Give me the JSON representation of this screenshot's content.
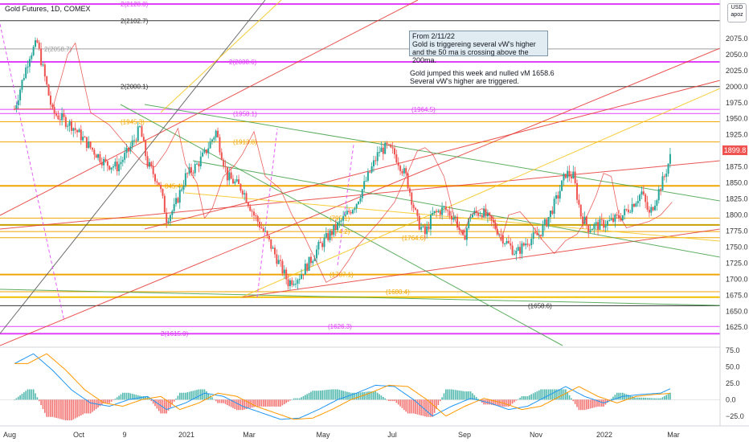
{
  "header": {
    "title": "Gold Futures, 1D, COMEX",
    "currency_label": "USD",
    "scale_label": "apoz",
    "last_price": "1899.8"
  },
  "annotations": {
    "box_lines": [
      "From 2/11/22",
      "Gold is triggereing several vW's higher",
      "and the 50 ma is crossing above the 200ma."
    ],
    "note_lines": [
      "Gold jumped this week and nulled vM 1658.6",
      "Several vW's higher are triggered."
    ]
  },
  "colors": {
    "background": "#ffffff",
    "candle_up": "#26a69a",
    "candle_down": "#ef5350",
    "level_magenta": "#e040fb",
    "level_orange": "#f0a500",
    "level_black": "#333333",
    "trend_red": "#e53935",
    "trend_green": "#43a047",
    "trend_yellow": "#f5c518",
    "macd_line": "#2196f3",
    "signal_line": "#ff9800"
  },
  "chart_data": [
    {
      "type": "candlestick",
      "title": "Gold Futures, 1D, COMEX",
      "xlabel": "",
      "ylabel": "",
      "ylim": [
        1594,
        2135
      ],
      "x_tick_labels": [
        "Aug",
        "Oct",
        "9",
        "2021",
        "Mar",
        "May",
        "Jul",
        "Sep",
        "Nov",
        "2022",
        "Mar"
      ],
      "y_tick_values": [
        1625,
        1650,
        1675,
        1700,
        1725,
        1750,
        1775,
        1800,
        1825,
        1850,
        1875,
        1900,
        1925,
        1950,
        1975,
        2000,
        2025,
        2050,
        2075
      ],
      "price_path": [
        {
          "month": 0.0,
          "price": 1965
        },
        {
          "month": 0.4,
          "price": 2050
        },
        {
          "month": 0.6,
          "price": 2068
        },
        {
          "month": 1.0,
          "price": 1960
        },
        {
          "month": 1.5,
          "price": 1940
        },
        {
          "month": 2.0,
          "price": 1905
        },
        {
          "month": 2.4,
          "price": 1880
        },
        {
          "month": 2.7,
          "price": 1875
        },
        {
          "month": 3.0,
          "price": 1900
        },
        {
          "month": 3.3,
          "price": 1935
        },
        {
          "month": 3.5,
          "price": 1880
        },
        {
          "month": 3.8,
          "price": 1850
        },
        {
          "month": 4.0,
          "price": 1795
        },
        {
          "month": 4.2,
          "price": 1810
        },
        {
          "month": 4.5,
          "price": 1860
        },
        {
          "month": 4.8,
          "price": 1878
        },
        {
          "month": 5.0,
          "price": 1895
        },
        {
          "month": 5.3,
          "price": 1930
        },
        {
          "month": 5.6,
          "price": 1860
        },
        {
          "month": 6.0,
          "price": 1840
        },
        {
          "month": 6.3,
          "price": 1800
        },
        {
          "month": 6.6,
          "price": 1770
        },
        {
          "month": 7.0,
          "price": 1720
        },
        {
          "month": 7.2,
          "price": 1695
        },
        {
          "month": 7.5,
          "price": 1705
        },
        {
          "month": 7.8,
          "price": 1730
        },
        {
          "month": 8.0,
          "price": 1750
        },
        {
          "month": 8.3,
          "price": 1770
        },
        {
          "month": 8.6,
          "price": 1790
        },
        {
          "month": 9.0,
          "price": 1820
        },
        {
          "month": 9.3,
          "price": 1860
        },
        {
          "month": 9.6,
          "price": 1900
        },
        {
          "month": 9.8,
          "price": 1905
        },
        {
          "month": 10.0,
          "price": 1895
        },
        {
          "month": 10.3,
          "price": 1860
        },
        {
          "month": 10.6,
          "price": 1790
        },
        {
          "month": 10.8,
          "price": 1770
        },
        {
          "month": 11.0,
          "price": 1800
        },
        {
          "month": 11.3,
          "price": 1810
        },
        {
          "month": 11.6,
          "price": 1795
        },
        {
          "month": 11.8,
          "price": 1760
        },
        {
          "month": 12.0,
          "price": 1800
        },
        {
          "month": 12.3,
          "price": 1805
        },
        {
          "month": 12.6,
          "price": 1785
        },
        {
          "month": 12.9,
          "price": 1760
        },
        {
          "month": 13.2,
          "price": 1740
        },
        {
          "month": 13.5,
          "price": 1760
        },
        {
          "month": 13.8,
          "price": 1770
        },
        {
          "month": 14.0,
          "price": 1790
        },
        {
          "month": 14.3,
          "price": 1830
        },
        {
          "month": 14.5,
          "price": 1865
        },
        {
          "month": 14.7,
          "price": 1860
        },
        {
          "month": 14.9,
          "price": 1800
        },
        {
          "month": 15.1,
          "price": 1780
        },
        {
          "month": 15.4,
          "price": 1785
        },
        {
          "month": 15.7,
          "price": 1790
        },
        {
          "month": 16.0,
          "price": 1800
        },
        {
          "month": 16.3,
          "price": 1820
        },
        {
          "month": 16.5,
          "price": 1835
        },
        {
          "month": 16.7,
          "price": 1800
        },
        {
          "month": 16.9,
          "price": 1830
        },
        {
          "month": 17.1,
          "price": 1860
        },
        {
          "month": 17.3,
          "price": 1900
        }
      ],
      "levels": [
        {
          "price": 2128.8,
          "label": "2(2128.8)",
          "color": "#e040fb",
          "width": 2
        },
        {
          "price": 2102.7,
          "label": "2(2102.7)",
          "color": "#333333",
          "width": 1
        },
        {
          "price": 2058.7,
          "label": "2(2058.7)",
          "color": "#9e9e9e",
          "width": 1
        },
        {
          "price": 2038.6,
          "label": "2(2038.6)",
          "color": "#e040fb",
          "width": 2
        },
        {
          "price": 2000.1,
          "label": "2(2000.1)",
          "color": "#333333",
          "width": 1
        },
        {
          "price": 1964.5,
          "label": "(1964.5)",
          "color": "#e040fb",
          "width": 1
        },
        {
          "price": 1958.1,
          "label": "(1958.1)",
          "color": "#e040fb",
          "width": 1
        },
        {
          "price": 1945.3,
          "label": "(1945.3)",
          "color": "#f0a500",
          "width": 1
        },
        {
          "price": 1913.8,
          "label": "(1913.8)",
          "color": "#f0a500",
          "width": 1
        },
        {
          "price": 1845.4,
          "label": "845.4)",
          "color": "#f0a500",
          "width": 2
        },
        {
          "price": 1795.1,
          "label": "(795.1)",
          "color": "#f0a500",
          "width": 1
        },
        {
          "price": 1784.5,
          "label": "",
          "color": "#c8a000",
          "width": 2
        },
        {
          "price": 1774.2,
          "label": "(774.2)",
          "color": "#f0a500",
          "width": 1
        },
        {
          "price": 1764.6,
          "label": "(1764.6)",
          "color": "#f0a500",
          "width": 1
        },
        {
          "price": 1707.1,
          "label": "(1707.1)",
          "color": "#f0a500",
          "width": 2
        },
        {
          "price": 1680.4,
          "label": "(1680.4)",
          "color": "#f0a500",
          "width": 1
        },
        {
          "price": 1672.0,
          "label": "",
          "color": "#f0c000",
          "width": 2
        },
        {
          "price": 1658.6,
          "label": "(1658.6)",
          "color": "#333333",
          "width": 1
        },
        {
          "price": 1626.3,
          "label": "(1626.3)",
          "color": "#e040fb",
          "width": 1
        },
        {
          "price": 1615.0,
          "label": "2(1615.0)",
          "color": "#e040fb",
          "width": 2
        }
      ]
    },
    {
      "type": "macd",
      "title": "",
      "ylim": [
        -40,
        80
      ],
      "y_tick_values": [
        75,
        50,
        25,
        0,
        -25
      ],
      "y_tick_labels": [
        "75.0",
        "50.0",
        "25.0",
        "0.0",
        "−25.0"
      ],
      "macd_path": [
        {
          "month": 0.0,
          "value": 55
        },
        {
          "month": 0.5,
          "value": 70
        },
        {
          "month": 1.0,
          "value": 45
        },
        {
          "month": 1.5,
          "value": 15
        },
        {
          "month": 2.0,
          "value": -5
        },
        {
          "month": 2.5,
          "value": -10
        },
        {
          "month": 3.0,
          "value": 0
        },
        {
          "month": 3.5,
          "value": 5
        },
        {
          "month": 4.0,
          "value": -15
        },
        {
          "month": 4.5,
          "value": -5
        },
        {
          "month": 5.0,
          "value": 10
        },
        {
          "month": 5.5,
          "value": 5
        },
        {
          "month": 6.0,
          "value": -10
        },
        {
          "month": 6.5,
          "value": -20
        },
        {
          "month": 7.0,
          "value": -30
        },
        {
          "month": 7.5,
          "value": -28
        },
        {
          "month": 8.0,
          "value": -15
        },
        {
          "month": 8.5,
          "value": 0
        },
        {
          "month": 9.0,
          "value": 10
        },
        {
          "month": 9.5,
          "value": 22
        },
        {
          "month": 10.0,
          "value": 20
        },
        {
          "month": 10.5,
          "value": 0
        },
        {
          "month": 11.0,
          "value": -25
        },
        {
          "month": 11.5,
          "value": -10
        },
        {
          "month": 12.0,
          "value": 2
        },
        {
          "month": 12.5,
          "value": -5
        },
        {
          "month": 13.0,
          "value": -15
        },
        {
          "month": 13.5,
          "value": -10
        },
        {
          "month": 14.0,
          "value": 5
        },
        {
          "month": 14.5,
          "value": 20
        },
        {
          "month": 15.0,
          "value": 5
        },
        {
          "month": 15.5,
          "value": -5
        },
        {
          "month": 16.0,
          "value": 5
        },
        {
          "month": 16.5,
          "value": 8
        },
        {
          "month": 17.0,
          "value": 10
        },
        {
          "month": 17.3,
          "value": 18
        }
      ]
    }
  ]
}
